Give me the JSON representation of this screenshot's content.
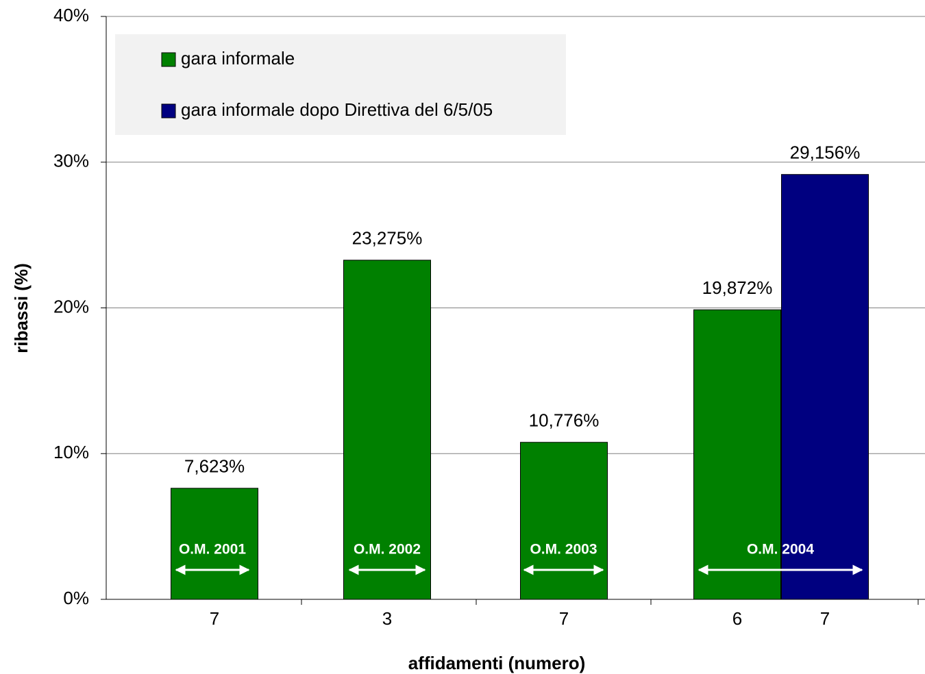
{
  "chart_data": {
    "type": "bar",
    "ylabel": "ribassi (%)",
    "xlabel": "affidamenti (numero)",
    "categories": [
      "7",
      "3",
      "7",
      "6",
      "7"
    ],
    "series": [
      {
        "name": "gara informale",
        "color": "#008000",
        "values": [
          7.623,
          23.275,
          10.776,
          19.872,
          null
        ],
        "value_labels": [
          "7,623%",
          "23,275%",
          "10,776%",
          "19,872%",
          null
        ]
      },
      {
        "name": "gara informale dopo Direttiva del 6/5/05",
        "color": "#000080",
        "values": [
          null,
          null,
          null,
          null,
          29.156
        ],
        "value_labels": [
          null,
          null,
          null,
          null,
          "29,156%"
        ]
      }
    ],
    "annotations": [
      "O.M. 2001",
      "O.M. 2002",
      "O.M. 2003",
      "O.M. 2004"
    ],
    "ylim": [
      0,
      40
    ],
    "yticks": [
      {
        "value": 0,
        "label": "0%"
      },
      {
        "value": 10,
        "label": "10%"
      },
      {
        "value": 20,
        "label": "20%"
      },
      {
        "value": 30,
        "label": "30%"
      },
      {
        "value": 40,
        "label": "40%"
      }
    ],
    "grid": true
  }
}
